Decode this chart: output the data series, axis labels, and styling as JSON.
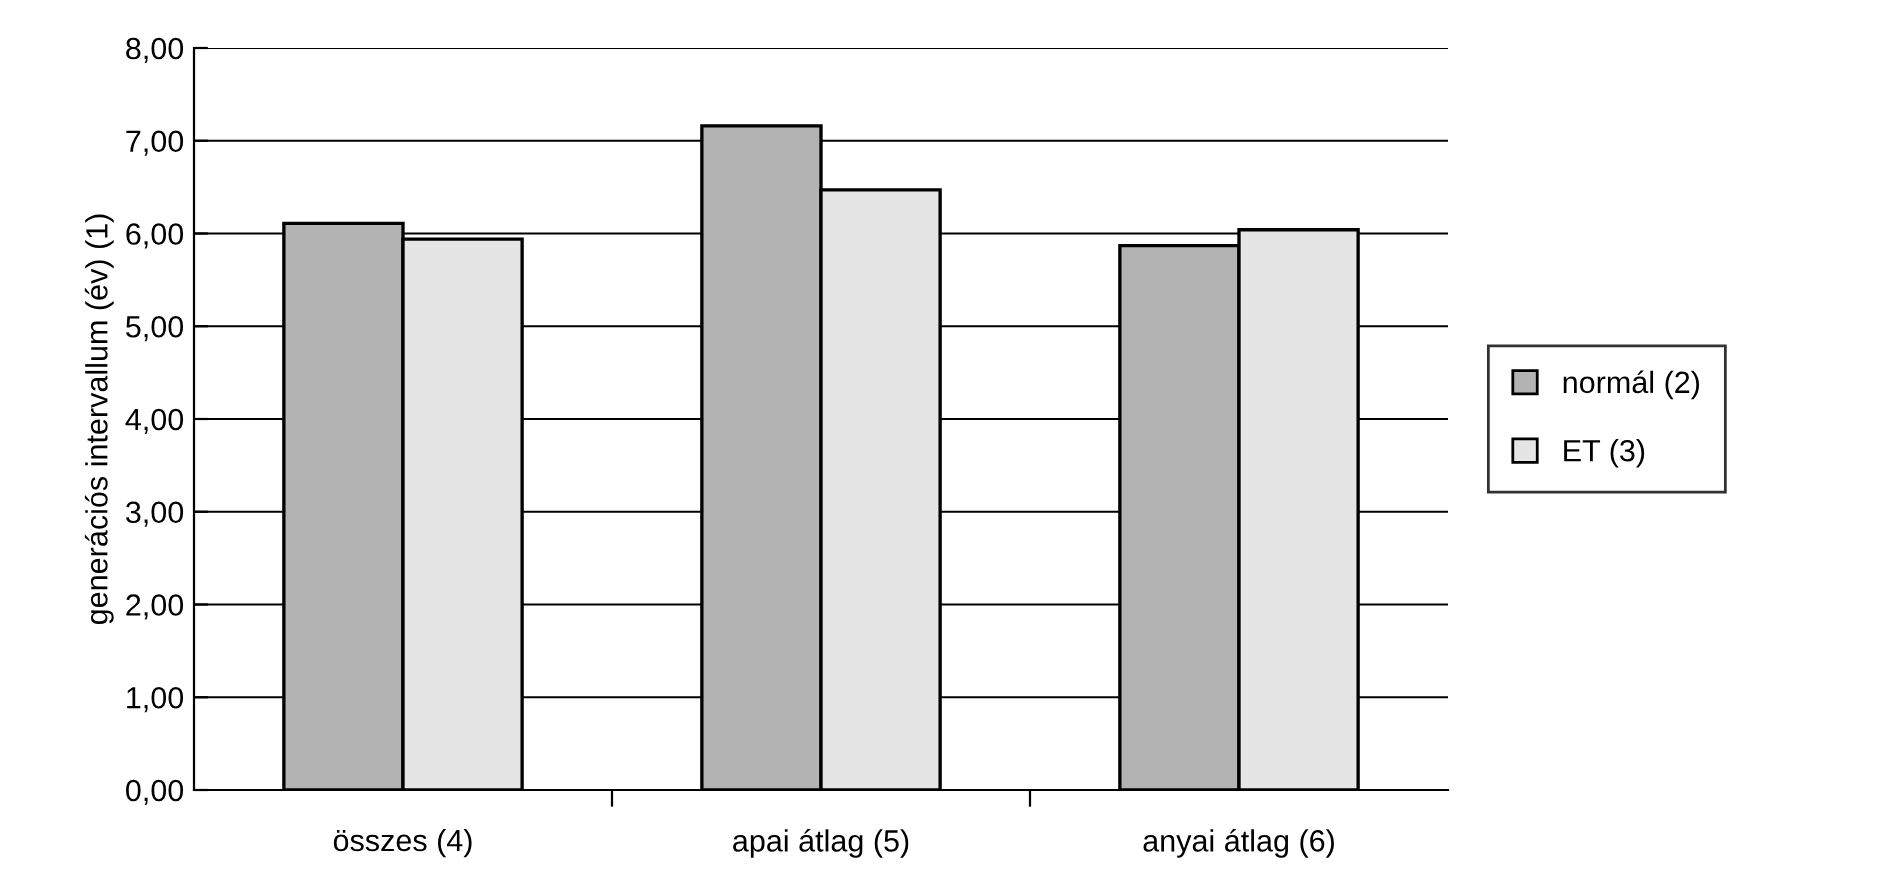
{
  "chart_data": {
    "type": "bar",
    "ylabel": "generációs intervallum (év) (1)",
    "categories": [
      "összes (4)",
      "apai átlag (5)",
      "anyai átlag (6)"
    ],
    "series": [
      {
        "name": "normál (2)",
        "color": "#b3b3b3",
        "values": [
          6.11,
          7.16,
          5.87
        ]
      },
      {
        "name": "ET (3)",
        "color": "#e5e5e5",
        "values": [
          5.94,
          6.47,
          6.04
        ]
      }
    ],
    "ylim": [
      0,
      8
    ],
    "yticks": [
      {
        "value": 0,
        "label": "0,00"
      },
      {
        "value": 1,
        "label": "1,00"
      },
      {
        "value": 2,
        "label": "2,00"
      },
      {
        "value": 3,
        "label": "3,00"
      },
      {
        "value": 4,
        "label": "4,00"
      },
      {
        "value": 5,
        "label": "5,00"
      },
      {
        "value": 6,
        "label": "6,00"
      },
      {
        "value": 7,
        "label": "7,00"
      },
      {
        "value": 8,
        "label": "8,00"
      }
    ],
    "grid": "y",
    "legend": "right"
  }
}
